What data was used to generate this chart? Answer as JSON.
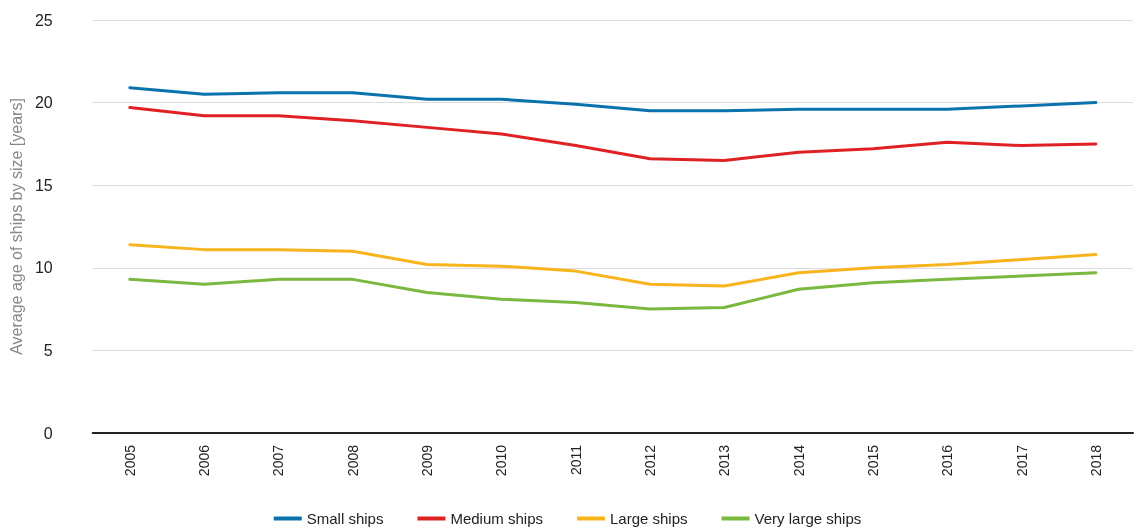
{
  "chart_data": {
    "type": "line",
    "ylabel": "Average age of ships by size [years]",
    "categories": [
      "2005",
      "2006",
      "2007",
      "2008",
      "2009",
      "2010",
      "2011",
      "2012",
      "2013",
      "2014",
      "2015",
      "2016",
      "2017",
      "2018"
    ],
    "series": [
      {
        "name": "Small ships",
        "color": "#0a72ad",
        "values": [
          20.9,
          20.5,
          20.6,
          20.6,
          20.2,
          20.2,
          19.9,
          19.5,
          19.5,
          19.6,
          19.6,
          19.6,
          19.8,
          20.0
        ]
      },
      {
        "name": "Medium ships",
        "color": "#e02124",
        "values": [
          19.7,
          19.2,
          19.2,
          18.9,
          18.5,
          18.1,
          17.4,
          16.6,
          16.5,
          17.0,
          17.2,
          17.6,
          17.4,
          17.5
        ]
      },
      {
        "name": "Large ships",
        "color": "#f8b41c",
        "values": [
          11.4,
          11.1,
          11.1,
          11.0,
          10.2,
          10.1,
          9.8,
          9.0,
          8.9,
          9.7,
          10.0,
          10.2,
          10.5,
          10.8
        ]
      },
      {
        "name": "Very large ships",
        "color": "#7ab840",
        "values": [
          9.3,
          9.0,
          9.3,
          9.3,
          8.5,
          8.1,
          7.9,
          7.5,
          7.6,
          8.7,
          9.1,
          9.3,
          9.5,
          9.7
        ]
      }
    ],
    "ylim": [
      0,
      25
    ],
    "yticks": [
      0,
      5,
      10,
      15,
      20,
      25
    ],
    "grid": "y",
    "legend": "bottom",
    "marker": "none",
    "line_style": "solid"
  }
}
